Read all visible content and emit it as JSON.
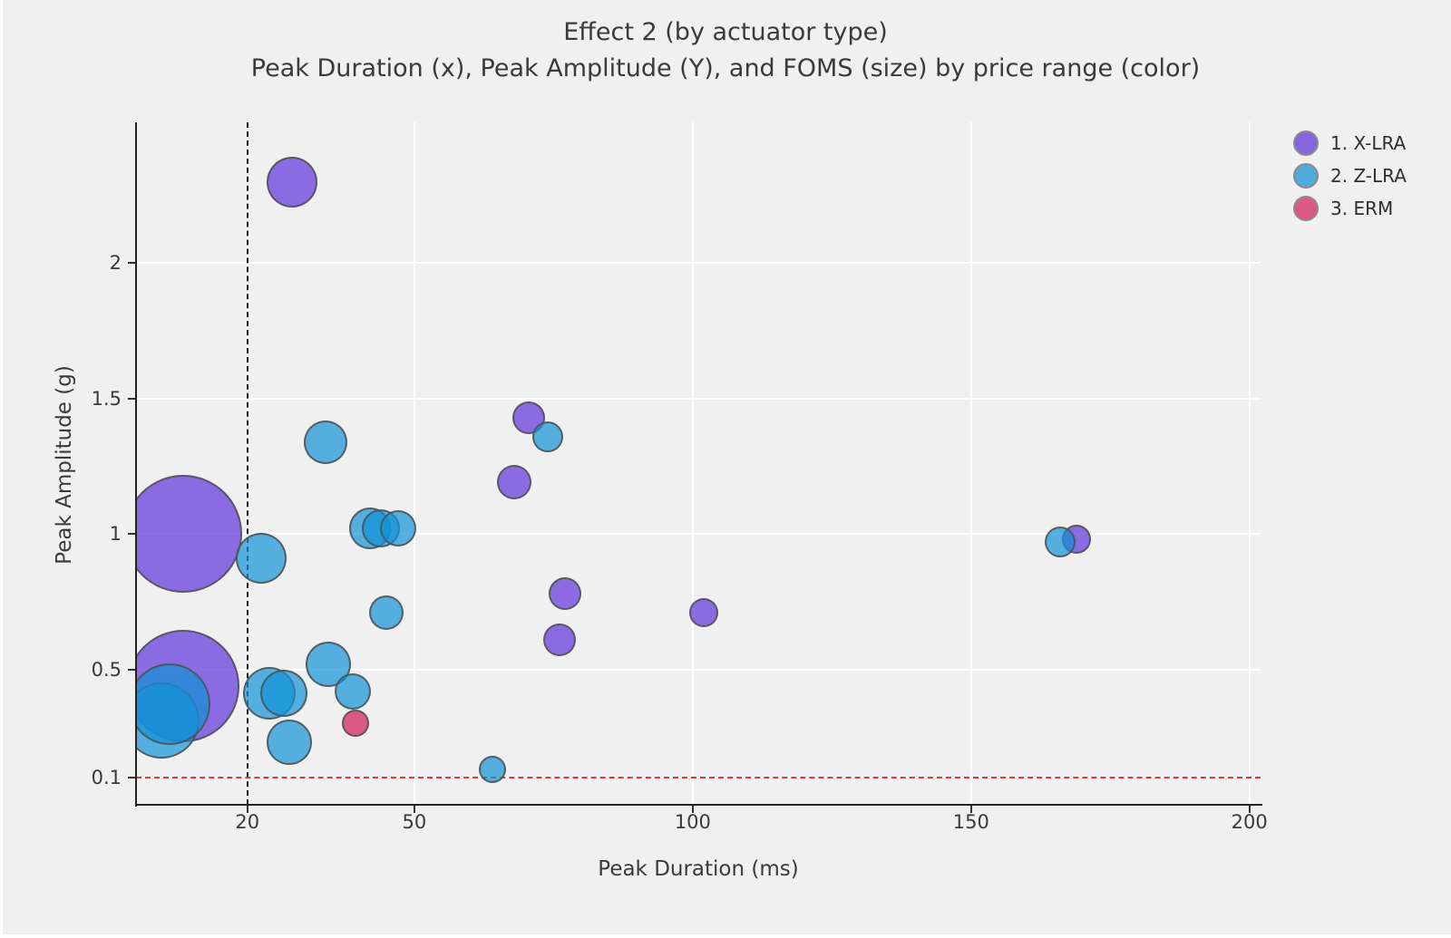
{
  "figure": {
    "title_line1": "Effect 2 (by actuator type)",
    "title_line2": "Peak Duration (x), Peak Amplitude (Y), and FOMS (size) by price range (color)",
    "background": "#f0f0f0"
  },
  "chart_data": {
    "type": "scatter",
    "title": "Effect 2 (by actuator type)",
    "subtitle": "Peak Duration (x), Peak Amplitude (Y), and FOMS (size) by price range (color)",
    "xlabel": "Peak Duration (ms)",
    "ylabel": "Peak Amplitude (g)",
    "xlim": [
      0,
      202
    ],
    "ylim": [
      0,
      2.52
    ],
    "grid": true,
    "legend_position": "top-right",
    "x_ticks": [
      {
        "value": 20,
        "label": "20"
      },
      {
        "value": 50,
        "label": "50"
      },
      {
        "value": 100,
        "label": "100"
      },
      {
        "value": 150,
        "label": "150"
      },
      {
        "value": 200,
        "label": "200"
      }
    ],
    "y_ticks": [
      {
        "value": 0.1,
        "label": "0.1"
      },
      {
        "value": 0.5,
        "label": "0.5"
      },
      {
        "value": 1,
        "label": "1"
      },
      {
        "value": 1.5,
        "label": "1.5"
      },
      {
        "value": 2,
        "label": "2"
      }
    ],
    "reference_lines": [
      {
        "axis": "x",
        "value": 20,
        "style": "dashed",
        "color": "#1c1c1c"
      },
      {
        "axis": "y",
        "value": 0.1,
        "style": "dashed",
        "color": "#e13535"
      }
    ],
    "series": [
      {
        "label": "1. X-LRA",
        "marker_color": "#8566DF",
        "fill": "rgba(94,50,220,0.70)"
      },
      {
        "label": "2. Z-LRA",
        "marker_color": "#4FABDC",
        "fill": "rgba(17,146,214,0.70)"
      },
      {
        "label": "3. ERM",
        "marker_color": "#DA5A84",
        "fill": "rgba(209,26,86,0.70)"
      }
    ],
    "bubbles": [
      {
        "s": 0,
        "x": 8.5,
        "y": 1.0,
        "r": 65
      },
      {
        "s": 0,
        "x": 8.5,
        "y": 0.44,
        "r": 62
      },
      {
        "s": 1,
        "x": 4.5,
        "y": 0.31,
        "r": 42
      },
      {
        "s": 1,
        "x": 6,
        "y": 0.37,
        "r": 45
      },
      {
        "s": 1,
        "x": 22.5,
        "y": 0.91,
        "r": 28
      },
      {
        "s": 1,
        "x": 24,
        "y": 0.41,
        "r": 29
      },
      {
        "s": 1,
        "x": 26.5,
        "y": 0.41,
        "r": 26
      },
      {
        "s": 1,
        "x": 27.5,
        "y": 0.23,
        "r": 25
      },
      {
        "s": 1,
        "x": 34.5,
        "y": 0.52,
        "r": 25
      },
      {
        "s": 1,
        "x": 39,
        "y": 0.42,
        "r": 20
      },
      {
        "s": 2,
        "x": 39.5,
        "y": 0.3,
        "r": 15
      },
      {
        "s": 0,
        "x": 28,
        "y": 2.3,
        "r": 28
      },
      {
        "s": 1,
        "x": 34,
        "y": 1.34,
        "r": 24
      },
      {
        "s": 1,
        "x": 42,
        "y": 1.02,
        "r": 23
      },
      {
        "s": 1,
        "x": 44,
        "y": 1.02,
        "r": 21
      },
      {
        "s": 1,
        "x": 47,
        "y": 1.02,
        "r": 20
      },
      {
        "s": 1,
        "x": 45,
        "y": 0.71,
        "r": 19
      },
      {
        "s": 0,
        "x": 70.5,
        "y": 1.43,
        "r": 18
      },
      {
        "s": 1,
        "x": 74,
        "y": 1.36,
        "r": 17
      },
      {
        "s": 0,
        "x": 68,
        "y": 1.19,
        "r": 19
      },
      {
        "s": 0,
        "x": 77,
        "y": 0.78,
        "r": 18
      },
      {
        "s": 0,
        "x": 76,
        "y": 0.61,
        "r": 18
      },
      {
        "s": 0,
        "x": 102,
        "y": 0.71,
        "r": 16
      },
      {
        "s": 1,
        "x": 64,
        "y": 0.13,
        "r": 15
      },
      {
        "s": 0,
        "x": 169,
        "y": 0.98,
        "r": 16
      },
      {
        "s": 1,
        "x": 166,
        "y": 0.97,
        "r": 17
      }
    ]
  }
}
